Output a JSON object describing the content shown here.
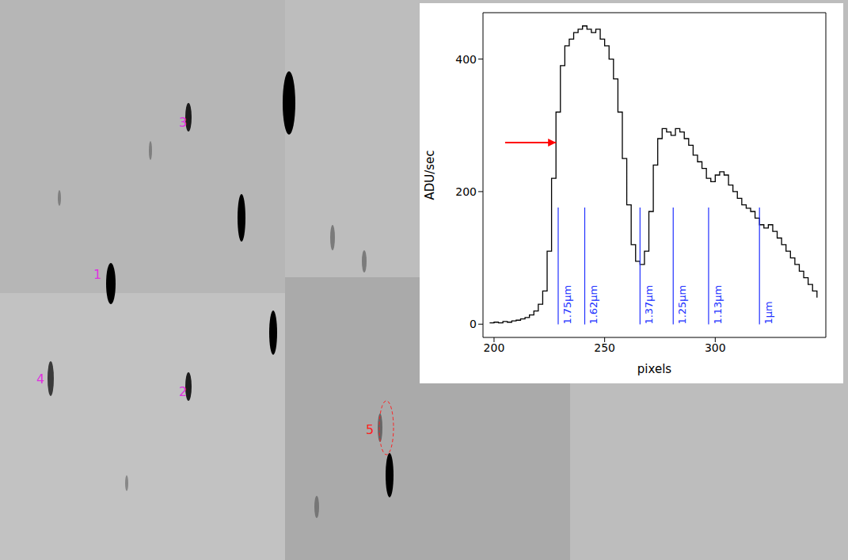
{
  "chart_data": {
    "type": "line",
    "x_label": "pixels",
    "y_label": "ADU/sec",
    "x": [
      198,
      200,
      202,
      204,
      206,
      208,
      210,
      212,
      214,
      216,
      218,
      220,
      222,
      224,
      226,
      228,
      230,
      232,
      234,
      236,
      238,
      240,
      242,
      244,
      246,
      248,
      250,
      252,
      254,
      256,
      258,
      260,
      262,
      264,
      266,
      268,
      270,
      272,
      274,
      276,
      278,
      280,
      282,
      284,
      286,
      288,
      290,
      292,
      294,
      296,
      298,
      300,
      302,
      304,
      306,
      308,
      310,
      312,
      314,
      316,
      318,
      320,
      322,
      324,
      326,
      328,
      330,
      332,
      334,
      336,
      338,
      340,
      342,
      344,
      346
    ],
    "values": [
      2,
      3,
      2,
      4,
      3,
      5,
      6,
      8,
      10,
      14,
      20,
      30,
      50,
      110,
      220,
      320,
      390,
      420,
      430,
      440,
      445,
      450,
      445,
      440,
      445,
      430,
      420,
      400,
      370,
      320,
      250,
      180,
      120,
      95,
      90,
      110,
      170,
      240,
      280,
      295,
      290,
      285,
      295,
      290,
      280,
      270,
      255,
      245,
      235,
      220,
      215,
      225,
      230,
      225,
      210,
      200,
      190,
      180,
      175,
      170,
      160,
      150,
      145,
      150,
      140,
      130,
      120,
      110,
      100,
      90,
      80,
      70,
      60,
      50,
      40
    ],
    "color": "#000000",
    "line_style": "step",
    "xlim": [
      195,
      350
    ],
    "xticks": [
      200,
      250,
      300
    ],
    "ylim": [
      -20,
      470
    ],
    "yticks": [
      0,
      200,
      400
    ],
    "annotations": [
      {
        "label": "1.75μm",
        "x": 229,
        "color": "#2030ff"
      },
      {
        "label": "1.62μm",
        "x": 241,
        "color": "#2030ff"
      },
      {
        "label": "1.37μm",
        "x": 266,
        "color": "#2030ff"
      },
      {
        "label": "1.25μm",
        "x": 281,
        "color": "#2030ff"
      },
      {
        "label": "1.13μm",
        "x": 297,
        "color": "#2030ff"
      },
      {
        "label": "1μm",
        "x": 320,
        "color": "#2030ff"
      }
    ]
  },
  "image": {
    "labels": [
      {
        "text": "1",
        "color": "#e030e0"
      },
      {
        "text": "2",
        "color": "#e030e0"
      },
      {
        "text": "3",
        "color": "#e030e0"
      },
      {
        "text": "4",
        "color": "#e030e0"
      },
      {
        "text": "5",
        "color": "#ff2020"
      }
    ]
  }
}
